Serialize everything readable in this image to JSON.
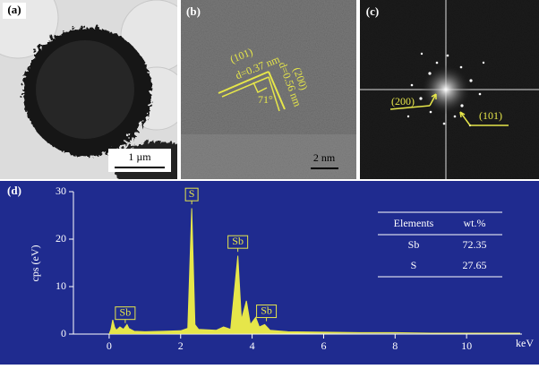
{
  "panels": [
    {
      "label": "(a)",
      "scale_bar": "1 µm"
    },
    {
      "label": "(b)",
      "annotations": [
        "(101)",
        "d=0.37 nm",
        "71°",
        "(200)",
        "d=0.56 nm"
      ],
      "scale_bar": "2 nm"
    },
    {
      "label": "(c)",
      "annotations": [
        "(200)",
        "(101)"
      ]
    }
  ],
  "chart_data": {
    "type": "area",
    "panel_label": "(d)",
    "y_label": "cps (eV)",
    "x_label": "keV",
    "color": "#e6e64a",
    "x": [
      0,
      0.05,
      0.1,
      0.15,
      0.2,
      0.3,
      0.4,
      0.5,
      0.55,
      0.7,
      1,
      1.5,
      2,
      2.2,
      2.31,
      2.4,
      2.5,
      3,
      3.2,
      3.4,
      3.6,
      3.7,
      3.84,
      3.95,
      4.1,
      4.2,
      4.35,
      4.5,
      5,
      6,
      7,
      8,
      9,
      10,
      11,
      11.5
    ],
    "values": [
      0,
      1,
      3,
      1.5,
      0.8,
      1.5,
      1,
      2,
      1.2,
      0.6,
      0.5,
      0.6,
      0.7,
      1.2,
      26.5,
      2,
      1,
      0.8,
      1.5,
      1,
      16.5,
      3,
      7,
      2,
      3.5,
      1.5,
      2,
      0.8,
      0.5,
      0.4,
      0.3,
      0.3,
      0.2,
      0.2,
      0.2,
      0.2
    ],
    "xlim": [
      -1,
      11.55
    ],
    "xticks": [
      0,
      2,
      4,
      6,
      8,
      10
    ],
    "ylim": [
      0,
      30
    ],
    "yticks": [
      0,
      10,
      20,
      30
    ],
    "annotations": [
      {
        "text": "Sb",
        "x": 0.45,
        "y": 4.4
      },
      {
        "text": "S",
        "x": 2.31,
        "y": 29.4
      },
      {
        "text": "Sb",
        "x": 3.6,
        "y": 19.4
      },
      {
        "text": "Sb",
        "x": 4.4,
        "y": 4.8
      }
    ],
    "table": {
      "header": [
        "Elements",
        "wt.%"
      ],
      "rows": [
        [
          "Sb",
          72.35
        ],
        [
          "S",
          27.65
        ]
      ]
    }
  }
}
